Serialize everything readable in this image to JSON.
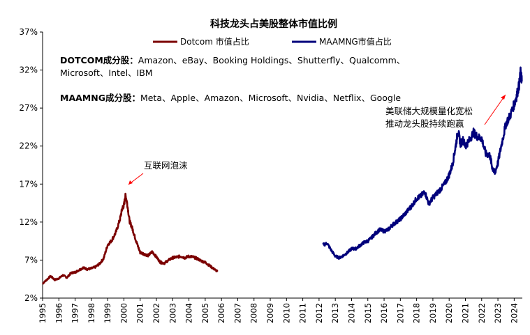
{
  "chart_data": {
    "type": "line",
    "title": "科技龙头占美股整体市值比例",
    "xlabel": "",
    "ylabel": "",
    "y_axis": {
      "min": 2,
      "max": 37,
      "step": 5,
      "unit": "%"
    },
    "x_axis": {
      "min": 1995,
      "max": 2024.5,
      "tick_labels": [
        "1995",
        "1996",
        "1997",
        "1998",
        "1999",
        "2000",
        "2001",
        "2002",
        "2003",
        "2004",
        "2005",
        "2006",
        "2007",
        "2008",
        "2009",
        "2010",
        "2011",
        "2012",
        "2013",
        "2014",
        "2015",
        "2016",
        "2017",
        "2018",
        "2019",
        "2020",
        "2021",
        "2022",
        "2023",
        "2024"
      ]
    },
    "grid": false,
    "legend_position": "top-center",
    "series": [
      {
        "name": "Dotcom 市值占比",
        "color": "#7b0000",
        "points": [
          [
            1995.0,
            3.9
          ],
          [
            1995.25,
            4.4
          ],
          [
            1995.5,
            4.9
          ],
          [
            1995.75,
            4.4
          ],
          [
            1996.0,
            4.6
          ],
          [
            1996.25,
            5.0
          ],
          [
            1996.5,
            4.7
          ],
          [
            1996.75,
            5.3
          ],
          [
            1997.0,
            5.4
          ],
          [
            1997.25,
            5.7
          ],
          [
            1997.5,
            6.0
          ],
          [
            1997.75,
            5.8
          ],
          [
            1998.0,
            5.9
          ],
          [
            1998.25,
            6.1
          ],
          [
            1998.5,
            6.5
          ],
          [
            1998.75,
            7.2
          ],
          [
            1999.0,
            9.0
          ],
          [
            1999.25,
            9.6
          ],
          [
            1999.5,
            10.6
          ],
          [
            1999.75,
            12.3
          ],
          [
            1999.9,
            13.8
          ],
          [
            2000.0,
            14.2
          ],
          [
            2000.1,
            15.5
          ],
          [
            2000.2,
            14.5
          ],
          [
            2000.35,
            12.1
          ],
          [
            2000.5,
            11.3
          ],
          [
            2000.65,
            10.2
          ],
          [
            2000.8,
            9.2
          ],
          [
            2001.0,
            8.0
          ],
          [
            2001.25,
            7.8
          ],
          [
            2001.5,
            7.6
          ],
          [
            2001.75,
            8.1
          ],
          [
            2002.0,
            7.4
          ],
          [
            2002.25,
            6.7
          ],
          [
            2002.5,
            6.6
          ],
          [
            2002.75,
            7.0
          ],
          [
            2003.0,
            7.3
          ],
          [
            2003.25,
            7.4
          ],
          [
            2003.5,
            7.5
          ],
          [
            2003.75,
            7.3
          ],
          [
            2004.0,
            7.5
          ],
          [
            2004.25,
            7.4
          ],
          [
            2004.5,
            7.2
          ],
          [
            2004.75,
            6.9
          ],
          [
            2005.0,
            6.7
          ],
          [
            2005.25,
            6.3
          ],
          [
            2005.5,
            5.9
          ],
          [
            2005.75,
            5.5
          ]
        ]
      },
      {
        "name": "MAAMNG市值占比",
        "color": "#00007b",
        "points": [
          [
            2012.25,
            9.0
          ],
          [
            2012.5,
            9.2
          ],
          [
            2012.75,
            8.3
          ],
          [
            2013.0,
            7.5
          ],
          [
            2013.25,
            7.3
          ],
          [
            2013.5,
            7.6
          ],
          [
            2013.75,
            8.0
          ],
          [
            2014.0,
            8.5
          ],
          [
            2014.25,
            8.5
          ],
          [
            2014.5,
            8.9
          ],
          [
            2014.75,
            9.3
          ],
          [
            2015.0,
            9.5
          ],
          [
            2015.25,
            10.0
          ],
          [
            2015.5,
            10.6
          ],
          [
            2015.75,
            11.0
          ],
          [
            2016.0,
            10.8
          ],
          [
            2016.25,
            11.0
          ],
          [
            2016.5,
            11.6
          ],
          [
            2016.75,
            12.0
          ],
          [
            2017.0,
            12.4
          ],
          [
            2017.25,
            13.0
          ],
          [
            2017.5,
            13.6
          ],
          [
            2017.75,
            14.3
          ],
          [
            2018.0,
            15.1
          ],
          [
            2018.25,
            15.4
          ],
          [
            2018.5,
            16.0
          ],
          [
            2018.75,
            14.4
          ],
          [
            2019.0,
            15.2
          ],
          [
            2019.25,
            15.8
          ],
          [
            2019.5,
            16.4
          ],
          [
            2019.75,
            17.1
          ],
          [
            2020.0,
            18.2
          ],
          [
            2020.2,
            19.5
          ],
          [
            2020.4,
            22.0
          ],
          [
            2020.55,
            24.0
          ],
          [
            2020.7,
            22.3
          ],
          [
            2020.85,
            22.8
          ],
          [
            2021.0,
            22.0
          ],
          [
            2021.25,
            22.8
          ],
          [
            2021.5,
            23.8
          ],
          [
            2021.75,
            23.2
          ],
          [
            2022.0,
            23.0
          ],
          [
            2022.25,
            21.0
          ],
          [
            2022.5,
            20.8
          ],
          [
            2022.65,
            19.2
          ],
          [
            2022.8,
            18.4
          ],
          [
            2023.0,
            19.8
          ],
          [
            2023.25,
            22.5
          ],
          [
            2023.5,
            25.0
          ],
          [
            2023.75,
            26.0
          ],
          [
            2024.0,
            27.5
          ],
          [
            2024.15,
            28.6
          ],
          [
            2024.3,
            30.0
          ],
          [
            2024.4,
            31.8
          ],
          [
            2024.47,
            30.5
          ]
        ]
      }
    ]
  },
  "notes": {
    "dotcom_label": "DOTCOM成分股：",
    "dotcom_line1": "Amazon、eBay、Booking Holdings、Shutterfly、Qualcomm、",
    "dotcom_line2": "Microsoft、Intel、IBM",
    "maamng_label": "MAAMNG成分股：",
    "maamng_line": "Meta、Apple、Amazon、Microsoft、Nvidia、Netflix、Google"
  },
  "annotations": {
    "bubble": "互联网泡沫",
    "qe_line1": "美联储大规模量化宽松",
    "qe_line2": "推动龙头股持续跑赢"
  },
  "colors": {
    "axis": "#000000",
    "annotation_arrow": "#ff0000"
  }
}
